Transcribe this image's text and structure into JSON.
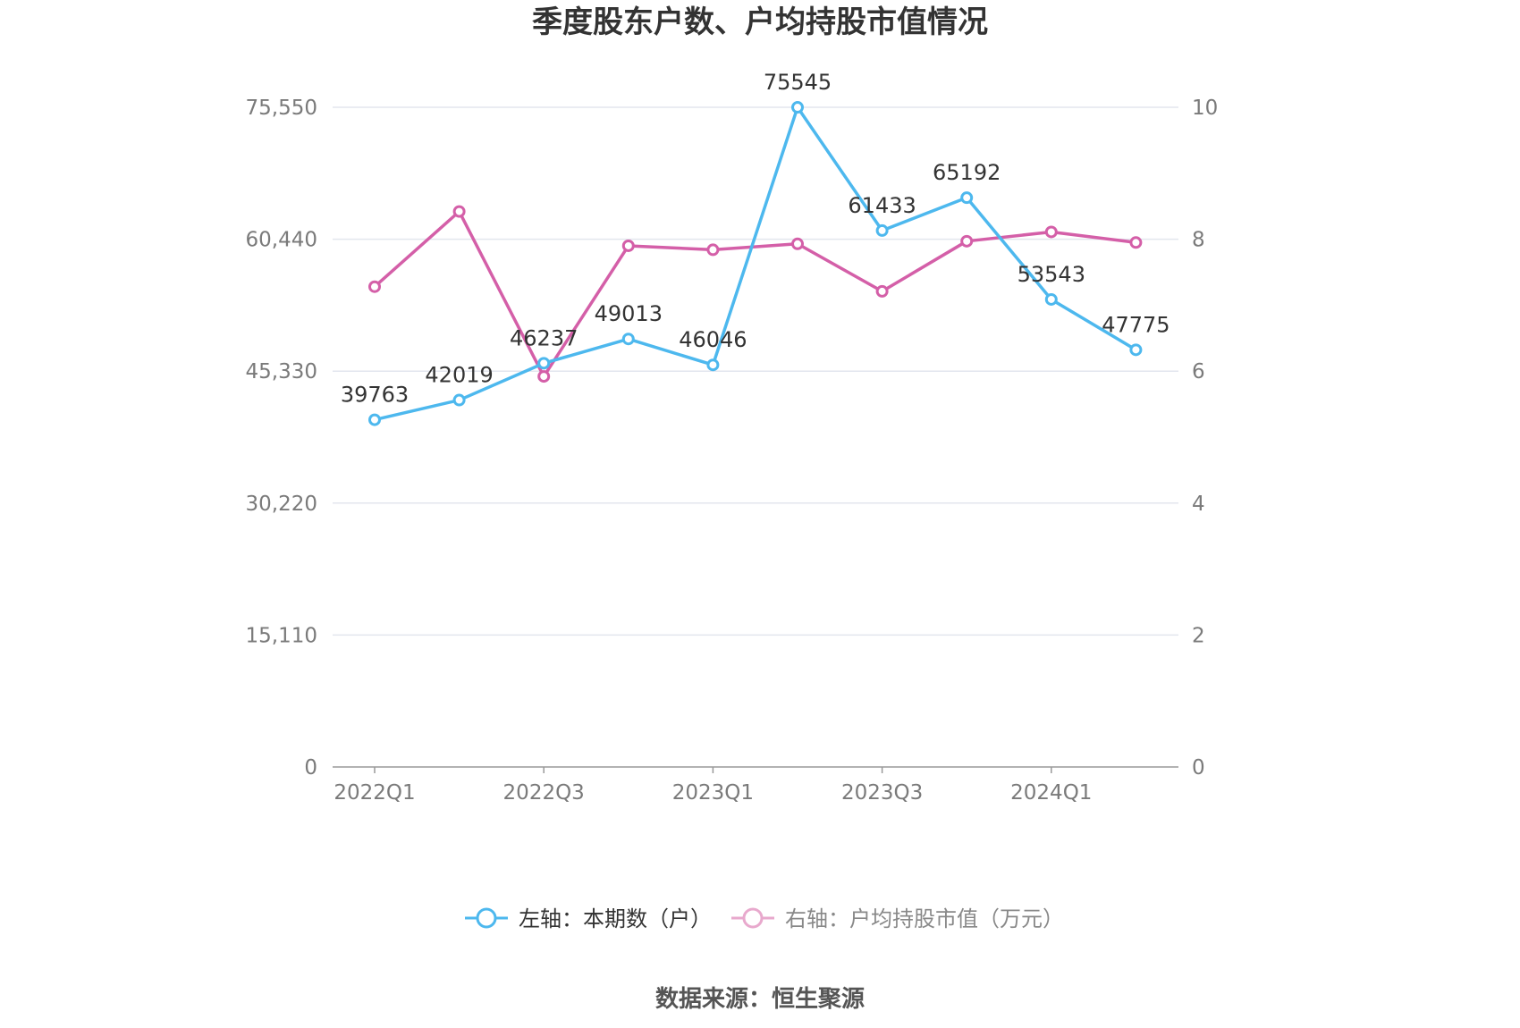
{
  "title": "季度股东户数、户均持股市值情况",
  "source": "数据来源：恒生聚源",
  "colors": {
    "series1": "#4db8ee",
    "series2": "#d45fa8",
    "legend_series2": "#e8a9cd",
    "grid": "#e3e6ee",
    "axis": "#999999"
  },
  "chart_data": {
    "type": "line",
    "title": "季度股东户数、户均持股市值情况",
    "x": [
      "2022Q1",
      "2022Q2",
      "2022Q3",
      "2022Q4",
      "2023Q1",
      "2023Q2",
      "2023Q3",
      "2023Q4",
      "2024Q1",
      "2024Q2"
    ],
    "x_tick_labels": [
      "2022Q1",
      "2022Q3",
      "2023Q1",
      "2023Q3",
      "2024Q1"
    ],
    "left_axis": {
      "ylim": [
        0,
        75550
      ],
      "ticks": [
        "0",
        "15,110",
        "30,220",
        "45,330",
        "60,440",
        "75,550"
      ]
    },
    "right_axis": {
      "ylim": [
        0,
        10
      ],
      "ticks": [
        "0",
        "2",
        "4",
        "6",
        "8",
        "10"
      ]
    },
    "series": [
      {
        "name": "左轴：本期数（户）",
        "axis": "left",
        "values": [
          39763,
          42019,
          46237,
          49013,
          46046,
          75545,
          61433,
          65192,
          53543,
          47775
        ],
        "labels": [
          "39763",
          "42019",
          "46237",
          "49013",
          "46046",
          "75545",
          "61433",
          "65192",
          "53543",
          "47775"
        ]
      },
      {
        "name": "右轴：户均持股市值（万元）",
        "axis": "right",
        "values": [
          7.28,
          8.42,
          5.92,
          7.9,
          7.84,
          7.93,
          7.21,
          7.97,
          8.11,
          7.95
        ]
      }
    ],
    "grid": true,
    "legend": "bottom-center"
  }
}
